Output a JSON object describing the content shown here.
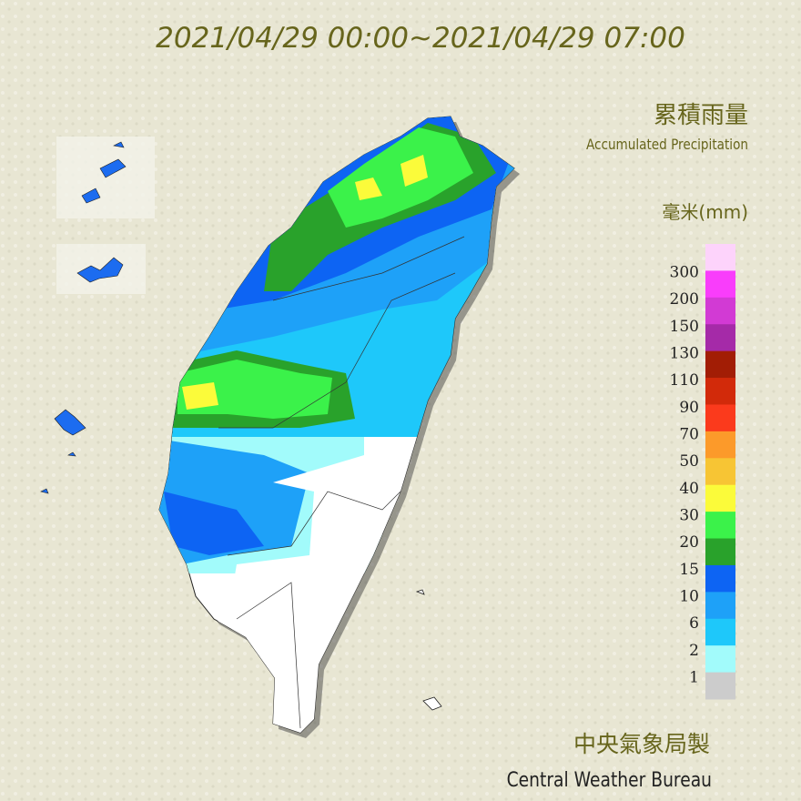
{
  "title": "2021/04/29 00:00~2021/04/29 07:00",
  "product": {
    "name_zh": "累積雨量",
    "name_en": "Accumulated Precipitation"
  },
  "legend": {
    "unit": "毫米(mm)",
    "colors": [
      "#fdd3fb",
      "#f93dfb",
      "#d23ad4",
      "#a52aa8",
      "#a21d05",
      "#d22a0a",
      "#fb3a1c",
      "#fc9a2a",
      "#f7c534",
      "#fbfb3a",
      "#3bf24a",
      "#29a22b",
      "#0d64f3",
      "#1ea1f8",
      "#1ec8fa",
      "#a2fbfb",
      "#cccccc"
    ],
    "labels": [
      "300",
      "200",
      "150",
      "130",
      "110",
      "90",
      "70",
      "50",
      "40",
      "30",
      "20",
      "15",
      "10",
      "6",
      "2",
      "1"
    ]
  },
  "credit": {
    "name_zh": "中央氣象局製",
    "name_en": "Central Weather Bureau"
  }
}
